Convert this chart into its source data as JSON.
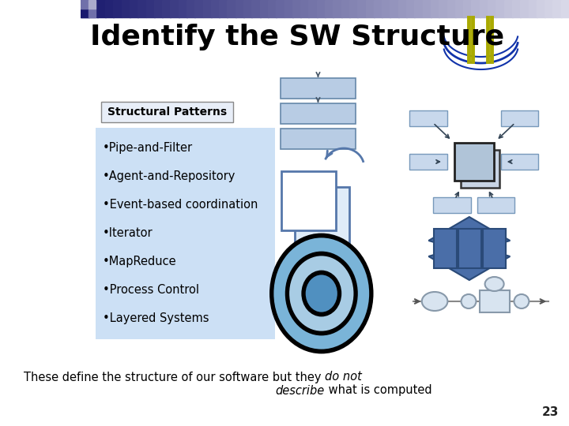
{
  "title": "Identify the SW Structure",
  "title_fontsize": 26,
  "title_color": "#000000",
  "background_color": "#ffffff",
  "structural_patterns_label": "Structural Patterns",
  "bullet_items": [
    "•Pipe-and-Filter",
    "•Agent-and-Repository",
    "•Event-based coordination",
    "•Iterator",
    "•MapReduce",
    "•Process Control",
    "•Layered Systems"
  ],
  "page_number": "23",
  "bullet_box_color": "#cce0f5",
  "pipe_color": "#b8cce4",
  "pipe_edge": "#6688aa",
  "spoke_color": "#c8d8ec",
  "hub_color": "#b0c4d8",
  "event_color": "#d0e4f4",
  "iterator_color": "#4a6ea8",
  "circle_colors": [
    "#000000",
    "#7ab4d8",
    "#000000",
    "#a8cce4",
    "#000000",
    "#5090c0"
  ],
  "circle_radii": [
    75,
    72,
    52,
    49,
    28,
    25
  ]
}
